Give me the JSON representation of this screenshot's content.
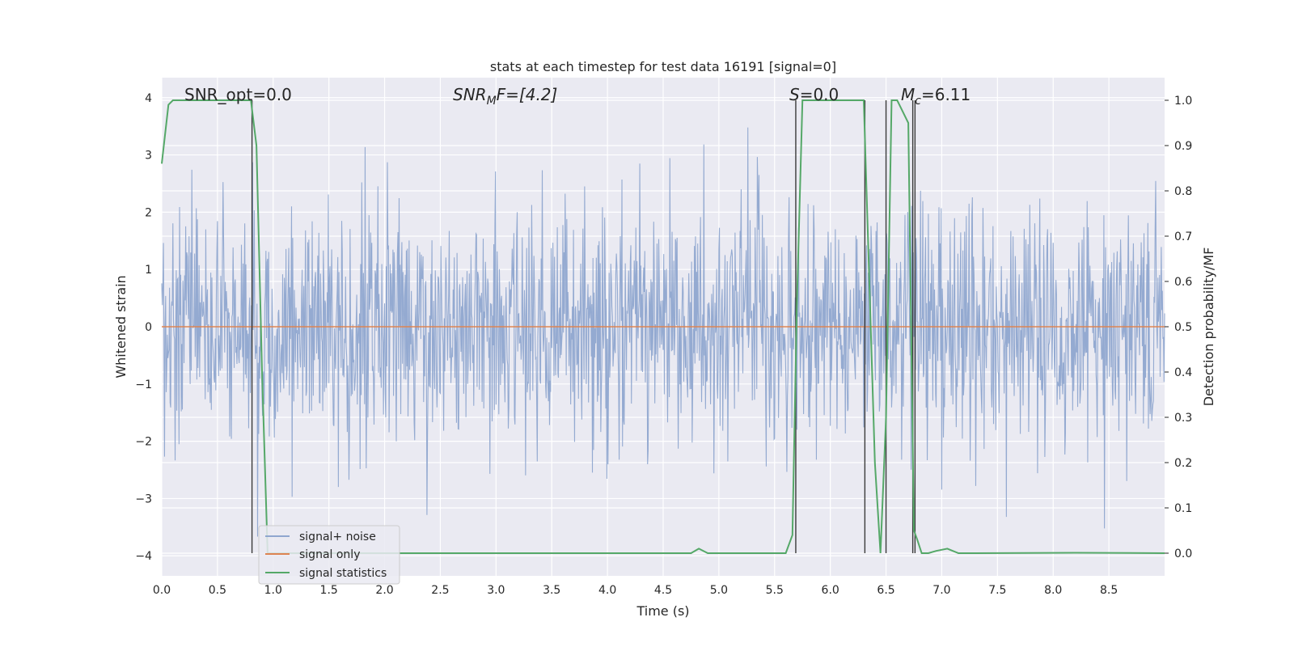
{
  "chart_data": {
    "type": "line",
    "title": "stats at each timestep for test data 16191 [signal=0]",
    "xlabel": "Time (s)",
    "ylabel": "Whitened strain",
    "ylabel_right": "Detection probability/MF",
    "xlim": [
      0.0,
      9.0
    ],
    "ylim": [
      -4.35,
      4.35
    ],
    "ylim_right": [
      -0.05,
      1.05
    ],
    "x_ticks": [
      "0.0",
      "0.5",
      "1.0",
      "1.5",
      "2.0",
      "2.5",
      "3.0",
      "3.5",
      "4.0",
      "4.5",
      "5.0",
      "5.5",
      "6.0",
      "6.5",
      "7.0",
      "7.5",
      "8.0",
      "8.5"
    ],
    "y_ticks": [
      "−4",
      "−3",
      "−2",
      "−1",
      "0",
      "1",
      "2",
      "3",
      "4"
    ],
    "y_ticks_right": [
      "0.0",
      "0.1",
      "0.2",
      "0.3",
      "0.4",
      "0.5",
      "0.6",
      "0.7",
      "0.8",
      "0.9",
      "1.0"
    ],
    "annotations": {
      "snr_opt": "SNR_opt=0.0",
      "snr_mf_main": "SNR",
      "snr_mf_sub": "M",
      "snr_mf_rest": "F=[4.2]",
      "s_main": "S",
      "s_rest": "=0.0",
      "mc_main": "M",
      "mc_sub": "c",
      "mc_rest": "=6.11"
    },
    "legend": {
      "placement": "lower-left",
      "entries": [
        "signal+ noise",
        "signal only",
        "signal statistics"
      ]
    },
    "grid": true,
    "colors": {
      "noise": "#8fa6cf",
      "signal_only": "#dd8452",
      "statistics": "#55a868",
      "vlines": "#3a3a3a",
      "background": "#eaeaf2"
    },
    "series": [
      {
        "name": "signal+ noise",
        "kind": "whitened noise, approx. amplitude range -3.8 to 4.0",
        "x_range": [
          0.0,
          9.0
        ]
      },
      {
        "name": "signal only",
        "x": [
          0.0,
          9.0
        ],
        "y": [
          0.0,
          0.0
        ]
      },
      {
        "name": "signal statistics",
        "axis": "right",
        "x": [
          0.0,
          0.06,
          0.1,
          0.8,
          0.85,
          0.9,
          0.95,
          1.0,
          1.5,
          2.0,
          4.0,
          4.75,
          4.82,
          4.9,
          5.0,
          5.6,
          5.66,
          5.7,
          5.75,
          5.8,
          6.3,
          6.35,
          6.4,
          6.45,
          6.5,
          6.55,
          6.6,
          6.7,
          6.75,
          6.78,
          6.82,
          6.88,
          6.95,
          7.05,
          7.15,
          7.3,
          8.2,
          9.0
        ],
        "y": [
          0.86,
          0.99,
          1.0,
          1.0,
          0.9,
          0.4,
          0.0,
          0.0,
          0.0,
          0.0,
          0.0,
          0.0,
          0.01,
          0.0,
          0.0,
          0.0,
          0.04,
          0.55,
          1.0,
          1.0,
          1.0,
          0.6,
          0.2,
          0.0,
          0.3,
          1.0,
          1.0,
          0.95,
          0.05,
          0.03,
          0.0,
          0.0,
          0.005,
          0.01,
          0.0,
          0.0,
          0.001,
          0.0
        ]
      }
    ],
    "vlines_x": [
      0.81,
      5.69,
      6.31,
      6.5,
      6.74,
      6.76
    ]
  }
}
